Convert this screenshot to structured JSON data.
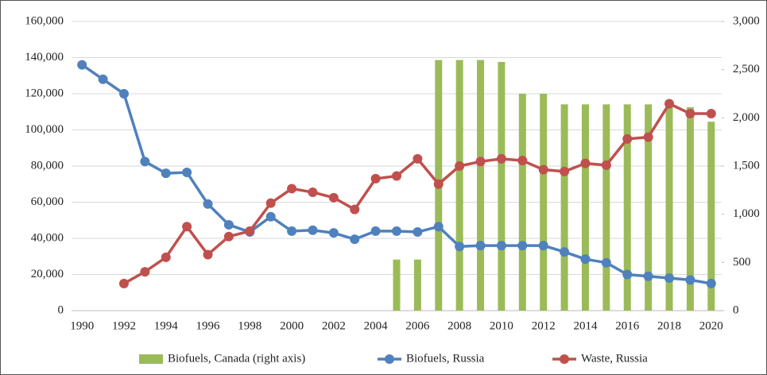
{
  "chart_data": {
    "type": "bar_line",
    "categories": [
      "1990",
      null,
      "1992",
      null,
      "1994",
      null,
      "1996",
      null,
      "1998",
      null,
      "2000",
      null,
      "2002",
      null,
      "2004",
      null,
      "2006",
      null,
      "2008",
      null,
      "2010",
      null,
      "2012",
      null,
      "2014",
      null,
      "2016",
      null,
      "2018",
      null,
      "2020"
    ],
    "series": [
      {
        "name": "Biofuels, Canada (right axis)",
        "type": "bar",
        "axis": "y2",
        "color": "#9bbb59",
        "values": [
          null,
          null,
          null,
          null,
          null,
          null,
          null,
          null,
          null,
          null,
          null,
          null,
          null,
          null,
          null,
          530,
          530,
          2600,
          2600,
          2600,
          2580,
          2250,
          2250,
          2140,
          2140,
          2140,
          2140,
          2140,
          2140,
          2110,
          1960
        ]
      },
      {
        "name": "Biofuels, Russia",
        "type": "line",
        "color": "#4f81bd",
        "values": [
          136000,
          128000,
          120000,
          82500,
          76000,
          76500,
          59000,
          47500,
          43500,
          52000,
          44000,
          44500,
          43000,
          39500,
          44000,
          44000,
          43500,
          46500,
          35500,
          36000,
          36000,
          36000,
          36000,
          32500,
          28500,
          26500,
          20000,
          19000,
          18000,
          17000,
          15000
        ]
      },
      {
        "name": "Waste, Russia",
        "type": "line",
        "color": "#c0504d",
        "values": [
          null,
          null,
          15000,
          21500,
          29500,
          46500,
          31000,
          41000,
          44000,
          59500,
          67500,
          65500,
          62500,
          56000,
          73000,
          74500,
          84000,
          70000,
          80000,
          82500,
          84000,
          83000,
          78000,
          77000,
          81500,
          80500,
          95000,
          96000,
          114500,
          109000,
          109000
        ]
      }
    ],
    "ylim": [
      0,
      160000
    ],
    "yticks": [
      0,
      {
        "value": 20000,
        "label": "20,000"
      },
      {
        "value": 40000,
        "label": "40,000"
      },
      {
        "value": 60000,
        "label": "60,000"
      },
      {
        "value": 80000,
        "label": "80,000"
      },
      {
        "value": 100000,
        "label": "100,000"
      },
      {
        "value": 120000,
        "label": "120,000"
      },
      {
        "value": 140000,
        "label": "140,000"
      },
      {
        "value": 160000,
        "label": "160,000"
      }
    ],
    "y2lim": [
      0,
      3000
    ],
    "y2ticks": [
      0,
      500,
      {
        "value": 1000,
        "label": "1,000"
      },
      {
        "value": 1500,
        "label": "1,500"
      },
      {
        "value": 2000,
        "label": "2,000"
      },
      {
        "value": 2500,
        "label": "2,500"
      },
      {
        "value": 3000,
        "label": "3,000"
      }
    ],
    "grid": true,
    "legend": "bottom"
  }
}
